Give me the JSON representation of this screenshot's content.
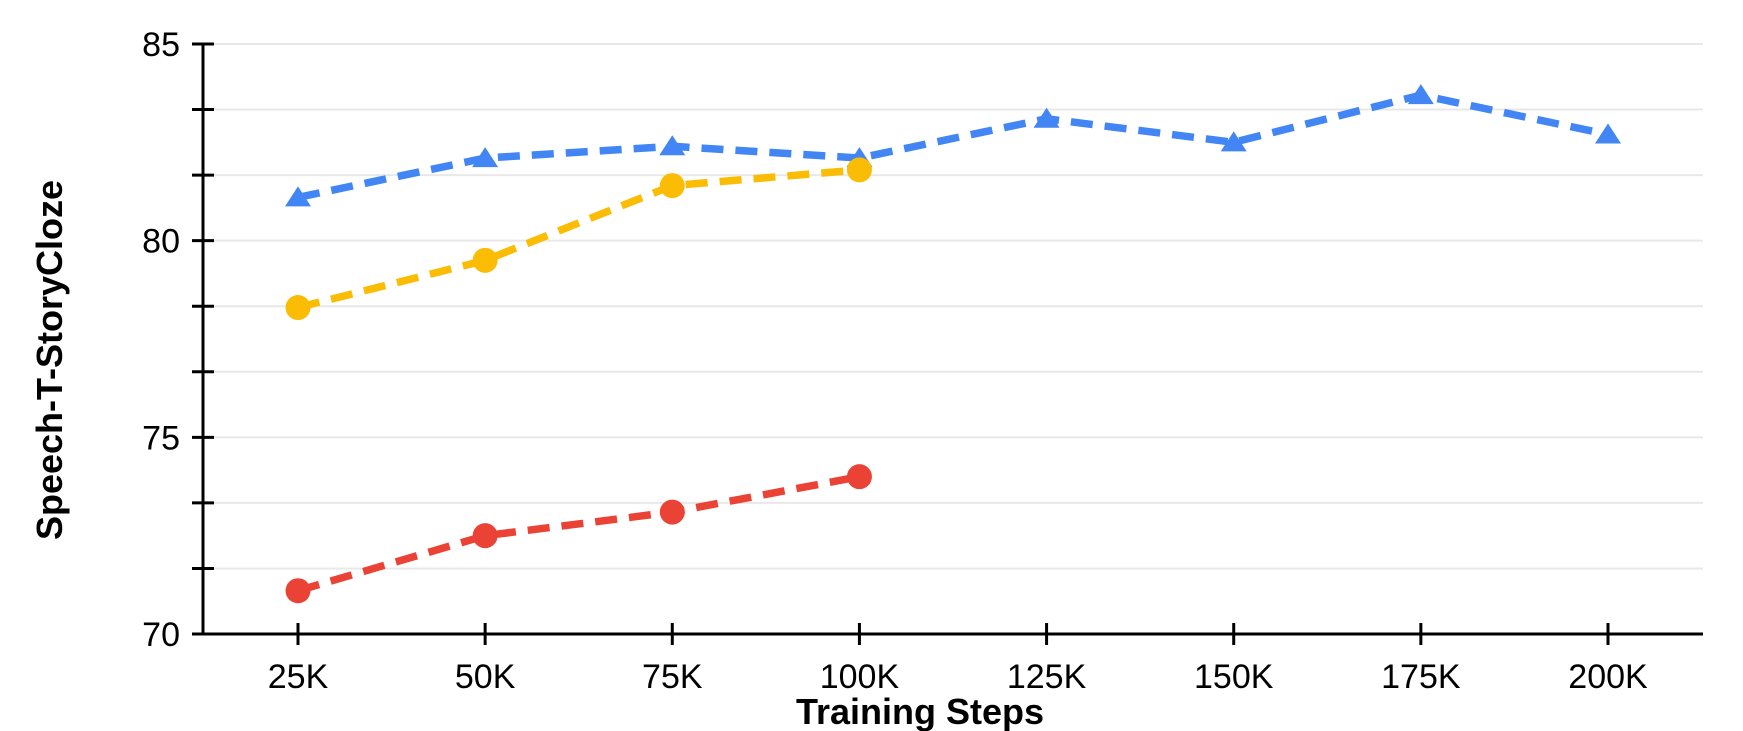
{
  "chart_data": {
    "type": "line",
    "title": "",
    "xlabel": "Training Steps",
    "ylabel": "Speech-T-StoryCloze",
    "categories": [
      "25K",
      "50K",
      "75K",
      "100K",
      "125K",
      "150K",
      "175K",
      "200K"
    ],
    "ylim": [
      70,
      85
    ],
    "y_major_ticks": [
      70,
      75,
      80,
      85
    ],
    "y_minor_per_major": 2,
    "grid": true,
    "legend_position": "none",
    "line_style": "dashed",
    "series": [
      {
        "name": "blue-triangle-series",
        "marker": "triangle",
        "color": "#4285F4",
        "values": [
          81.1,
          82.1,
          82.4,
          82.1,
          83.1,
          82.5,
          83.7,
          82.7
        ]
      },
      {
        "name": "yellow-circle-series",
        "marker": "circle",
        "color": "#FBBC04",
        "values": [
          78.3,
          79.5,
          81.4,
          81.8,
          null,
          null,
          null,
          null
        ]
      },
      {
        "name": "red-circle-series",
        "marker": "circle",
        "color": "#EA4335",
        "values": [
          71.1,
          72.5,
          73.1,
          74.0,
          null,
          null,
          null,
          null
        ]
      }
    ],
    "axis_color": "#000000",
    "gridline_color": "#E8E8E8",
    "background_color": "#FFFFFF"
  }
}
